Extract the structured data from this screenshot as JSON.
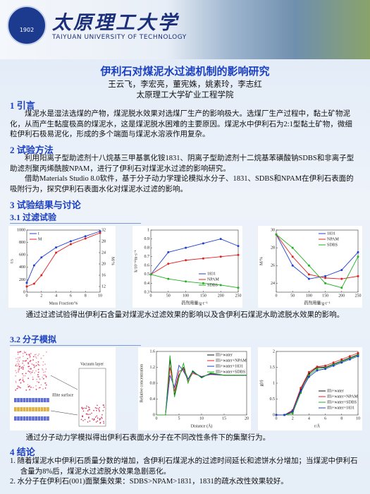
{
  "header": {
    "university_cn": "太原理工大学",
    "university_en": "TAIYUAN UNIVERSITY OF TECHNOLOGY",
    "logo_year": "1902"
  },
  "title": "伊利石对煤泥水过滤机制的影响研究",
  "authors": "王云飞，李宏亮，董宪姝，姚素玲，李志红",
  "affiliation": "太原理工大学矿业工程学院",
  "intro": {
    "heading": "1 引言",
    "text": "煤泥水是湿法选煤的产物，煤泥脱水效果对选煤厂生产的影响极大。选煤厂生产过程中，黏土矿物泥化，从而产生黏度极高的煤泥水，这是煤泥脱水困难的主要原因。煤泥水中伊利石为2:1型黏土矿物，微细粒伊利石极易泥化，形成的多个端面与煤泥水溶液作用复杂。"
  },
  "methods": {
    "heading": "2 试验方法",
    "paragraphs": [
      "利用阳离子型助滤剂十八烷基三甲基氯化铵1831、阴离子型助滤剂十二烷基苯磺酸钠SDBS和非离子型助滤剂聚丙烯酰胺NPAM，进行了伊利石对煤泥水过滤的影响研究。",
      "借助Materials Studio 8.0软件，基于分子动力学理论模拟水分子、1831、SDBS和NPAM在伊利石表面的吸附行为，探究伊利石表面水化对煤泥水过滤的影响。"
    ]
  },
  "results": {
    "heading": "3 试验结果与讨论",
    "filtration": {
      "heading": "3.1 过滤试验",
      "figures": [
        {
          "type": "line",
          "xlabel": "Mass Fraction/%",
          "ylabel": "t/s",
          "y2label": "M/%",
          "x": [
            0,
            1,
            2,
            4,
            6,
            8,
            10
          ],
          "xlim": [
            0,
            10
          ],
          "xticks": [
            0,
            2,
            4,
            6,
            8,
            10
          ],
          "ylim": [
            0,
            1000
          ],
          "yticks": [
            0,
            200,
            400,
            600,
            800,
            1000
          ],
          "y2lim": [
            10,
            32
          ],
          "y2ticks": [
            12,
            16,
            20,
            24,
            28,
            32
          ],
          "markers": true,
          "legend": "upper-left",
          "series": [
            {
              "name": "t",
              "color": "#1f3fd0",
              "values": [
                150,
                430,
                560,
                720,
                820,
                900,
                980
              ]
            },
            {
              "name": "M",
              "color": "#e02020",
              "axis": "y2",
              "values": [
                12,
                13,
                16,
                24,
                27,
                29,
                31
              ]
            }
          ]
        },
        {
          "type": "line",
          "xlabel": "药剂用量/g·t⁻¹",
          "ylabel": "k/10⁻¹²m·s⁻¹",
          "x": [
            0,
            50,
            100,
            150,
            200,
            250
          ],
          "xlim": [
            0,
            250
          ],
          "xticks": [
            0,
            50,
            100,
            150,
            200,
            250
          ],
          "ylim": [
            0.3,
            1.0
          ],
          "yticks": [
            0.3,
            0.4,
            0.5,
            0.6,
            0.7,
            0.8,
            0.9,
            1.0
          ],
          "markers": true,
          "legend": "lower-right",
          "series": [
            {
              "name": "1831",
              "color": "#1f3fd0",
              "values": [
                0.5,
                0.75,
                0.8,
                0.85,
                0.9,
                0.82
              ]
            },
            {
              "name": "NPAM",
              "color": "#e02020",
              "values": [
                0.5,
                0.62,
                0.66,
                0.68,
                0.7,
                0.72
              ]
            },
            {
              "name": "SDBS",
              "color": "#20b020",
              "values": [
                0.5,
                0.45,
                0.42,
                0.4,
                0.38,
                0.35
              ]
            }
          ]
        },
        {
          "type": "line",
          "xlabel": "药剂用量/g·t⁻¹",
          "ylabel": "M/%",
          "x": [
            0,
            50,
            100,
            150,
            200,
            250
          ],
          "xlim": [
            0,
            250
          ],
          "xticks": [
            0,
            50,
            100,
            150,
            200,
            250
          ],
          "ylim": [
            23,
            30
          ],
          "yticks": [
            24,
            26,
            28,
            30
          ],
          "markers": true,
          "legend": "upper-right",
          "series": [
            {
              "name": "1831",
              "color": "#1f3fd0",
              "values": [
                29.5,
                26,
                24.5,
                24.8,
                25.5,
                27.5
              ]
            },
            {
              "name": "NPAM",
              "color": "#e02020",
              "values": [
                29.5,
                27,
                25,
                24.6,
                24.5,
                24.8
              ]
            },
            {
              "name": "SDBS",
              "color": "#20b020",
              "values": [
                29.5,
                28,
                26,
                24,
                23.5,
                27
              ]
            }
          ]
        }
      ],
      "caption": "通过过滤试验得出伊利石含量对煤泥水过滤效果的影响以及含伊利石煤泥水助滤脱水效果的影响。"
    },
    "simulation": {
      "heading": "3.2 分子模拟",
      "figures": [
        {
          "type": "diagram",
          "labels": [
            "Vacuum layer",
            "Illite surface"
          ]
        },
        {
          "type": "line",
          "xlabel": "Distance (Å)",
          "ylabel": "Relative concentration",
          "x": [
            0,
            2,
            3,
            4,
            5,
            6,
            7,
            8,
            10,
            12,
            15,
            20
          ],
          "xlim": [
            0,
            20
          ],
          "xticks": [
            0,
            5,
            10,
            15,
            20
          ],
          "ylim": [
            0,
            1.6
          ],
          "yticks": [
            0,
            0.4,
            0.8,
            1.2,
            1.6
          ],
          "markers": false,
          "legend": "upper-right",
          "series": [
            {
              "name": "Illi+water",
              "color": "#111111",
              "values": [
                0,
                0,
                1.4,
                0.5,
                1.0,
                1.2,
                0.9,
                1.1,
                0.95,
                1.05,
                1.0,
                1.0
              ]
            },
            {
              "name": "Illi+water+NPAM",
              "color": "#e02020",
              "values": [
                0,
                0,
                1.2,
                0.6,
                1.1,
                1.15,
                0.85,
                1.05,
                0.97,
                1.02,
                1.0,
                1.0
              ]
            },
            {
              "name": "Illi+water+1831",
              "color": "#1f3fd0",
              "values": [
                0,
                0,
                1.0,
                0.7,
                1.25,
                1.1,
                0.9,
                1.08,
                0.96,
                1.03,
                1.0,
                1.0
              ]
            },
            {
              "name": "Illi+water+SDBS",
              "color": "#20b020",
              "values": [
                0,
                0,
                1.5,
                0.45,
                0.95,
                1.3,
                0.8,
                1.12,
                0.93,
                1.06,
                1.0,
                1.0
              ]
            }
          ]
        },
        {
          "type": "line",
          "xlabel": "r/Å",
          "ylabel": "g(r)",
          "x": [
            0,
            1,
            2,
            3,
            4,
            5,
            6,
            7,
            8,
            9,
            10
          ],
          "xlim": [
            0,
            10
          ],
          "xticks": [
            0,
            2,
            4,
            6,
            8,
            10
          ],
          "ylim": [
            0,
            2
          ],
          "yticks": [
            0,
            0.5,
            1,
            1.5,
            2
          ],
          "markers": true,
          "legend": "lower-right",
          "series": [
            {
              "name": "Illi+water",
              "color": "#111111",
              "values": [
                0,
                0,
                0.1,
                0.8,
                1.3,
                1.5,
                1.5,
                1.6,
                1.7,
                1.8,
                1.9
              ]
            },
            {
              "name": "Illi+water+NPAM",
              "color": "#e02020",
              "values": [
                0,
                0,
                0.15,
                0.85,
                1.35,
                1.52,
                1.55,
                1.65,
                1.75,
                1.85,
                1.95
              ]
            },
            {
              "name": "Illi+water+SDBS",
              "color": "#20b020",
              "values": [
                0,
                0,
                0.05,
                0.7,
                1.25,
                1.45,
                1.48,
                1.58,
                1.68,
                1.78,
                1.88
              ]
            },
            {
              "name": "Illi+water+1831",
              "color": "#1f3fd0",
              "values": [
                0,
                0,
                0.12,
                0.75,
                1.2,
                1.4,
                1.45,
                1.55,
                1.65,
                1.75,
                1.85
              ]
            }
          ]
        }
      ],
      "caption": "通过分子动力学模拟得出伊利石表面水分子在不同改性条件下的集聚行为。"
    }
  },
  "conclusions": {
    "heading": "4 结论",
    "items": [
      "1. 随着煤泥水中伊利石质量分数的增加，含伊利石煤泥水的过滤时间延长和滤饼水分增加；当煤泥中伊利石含量为8%后，煤泥水过滤脱水效果急剧恶化。",
      "2. 水分子在伊利石(001)面聚集效果：SDBS>NPAM>1831，1831的疏水改性效果较好。"
    ]
  }
}
